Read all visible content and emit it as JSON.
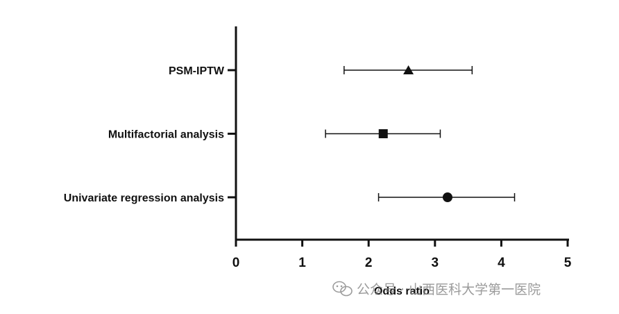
{
  "chart_data": {
    "type": "forest",
    "xlabel": "Odds ratio",
    "xlim": [
      0,
      5
    ],
    "xticks": [
      "0",
      "1",
      "2",
      "3",
      "4",
      "5"
    ],
    "rows": [
      {
        "label": "PSM-IPTW",
        "estimate": 2.6,
        "lower": 1.63,
        "upper": 3.56,
        "marker": "triangle"
      },
      {
        "label": "Multifactorial analysis",
        "estimate": 2.22,
        "lower": 1.35,
        "upper": 3.08,
        "marker": "square"
      },
      {
        "label": "Univariate regression analysis",
        "estimate": 3.19,
        "lower": 2.15,
        "upper": 4.2,
        "marker": "circle"
      }
    ],
    "grid": false,
    "legend": "none"
  },
  "watermark": {
    "text": "公众号 · 山西医科大学第一医院",
    "icon": "wechat-icon"
  }
}
